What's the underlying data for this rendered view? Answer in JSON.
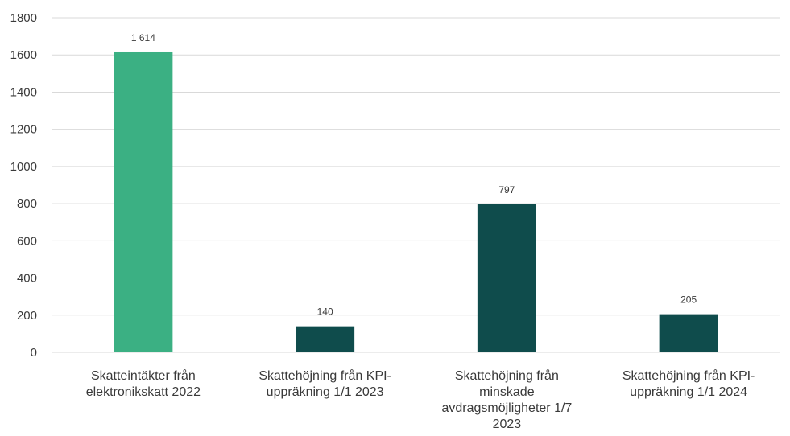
{
  "chart_data": {
    "type": "bar",
    "categories": [
      [
        "Skatteintäkter från",
        "elektronikskatt 2022"
      ],
      [
        "Skattehöjning från KPI-",
        "uppräkning 1/1 2023"
      ],
      [
        "Skattehöjning från",
        "minskade",
        "avdragsmöjligheter 1/7",
        "2023"
      ],
      [
        "Skattehöjning från KPI-",
        "uppräkning 1/1 2024"
      ]
    ],
    "values": [
      1614,
      140,
      797,
      205
    ],
    "data_labels": [
      "1 614",
      "140",
      "797",
      "205"
    ],
    "bar_colors": [
      "#3bb083",
      "#0f4c4c",
      "#0f4c4c",
      "#0f4c4c"
    ],
    "y_ticks": [
      "0",
      "200",
      "400",
      "600",
      "800",
      "1000",
      "1200",
      "1400",
      "1600",
      "1800"
    ],
    "ylim": [
      0,
      1800
    ],
    "grid": true,
    "legend": false
  }
}
